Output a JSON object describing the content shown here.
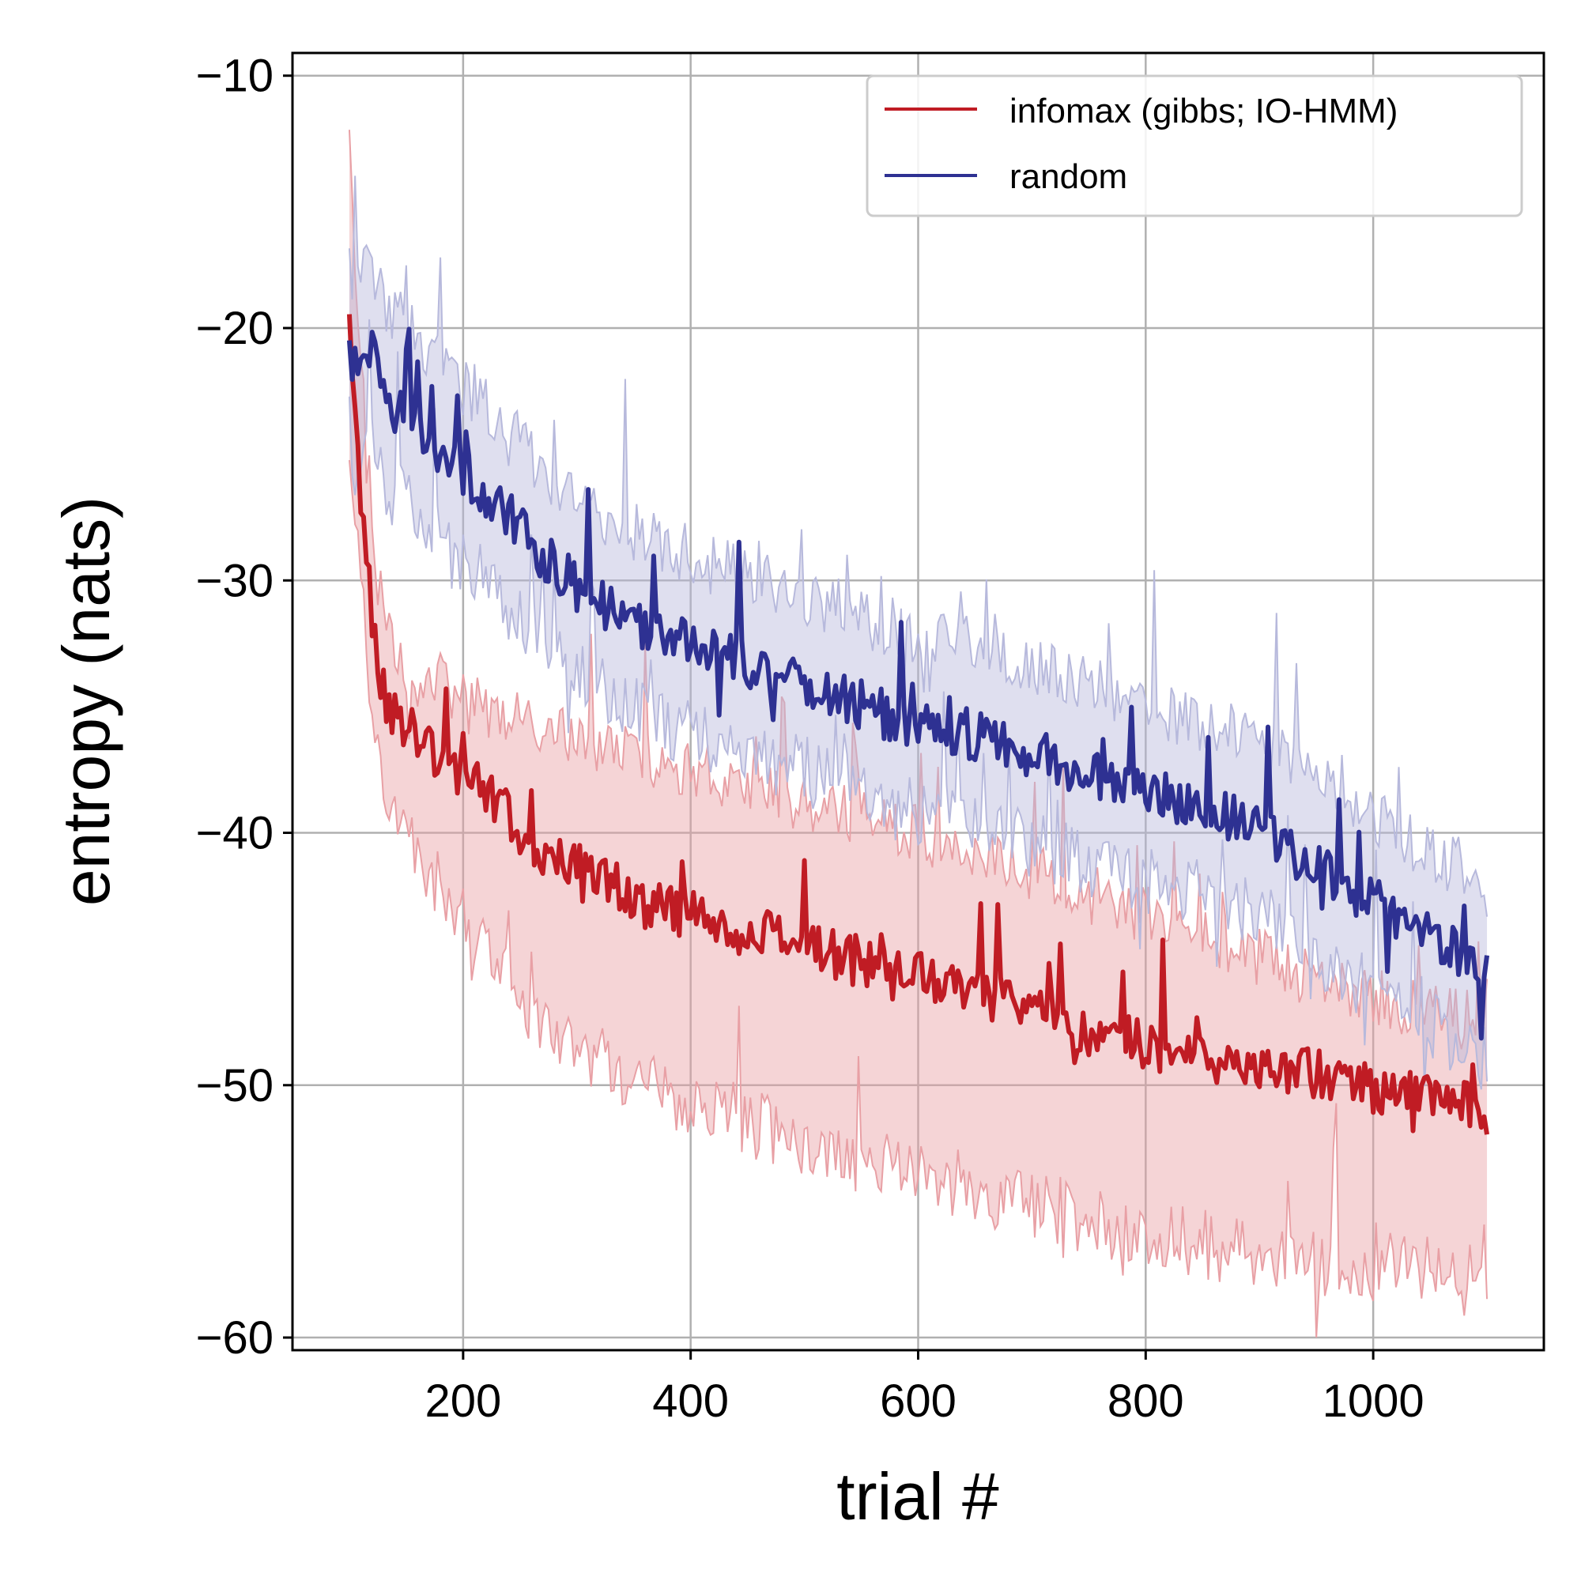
{
  "chart_data": {
    "type": "line",
    "title": "",
    "xlabel": "trial #",
    "ylabel": "entropy (nats)",
    "xlim": [
      50,
      1150
    ],
    "ylim": [
      -60.5,
      -9.1
    ],
    "xticks": [
      200,
      400,
      600,
      800,
      1000
    ],
    "xtick_labels": [
      "200",
      "400",
      "600",
      "800",
      "1000"
    ],
    "yticks": [
      -10,
      -20,
      -30,
      -40,
      -50,
      -60
    ],
    "ytick_labels": [
      "−10",
      "−20",
      "−30",
      "−40",
      "−50",
      "−60"
    ],
    "grid": true,
    "legend_position": "top-right",
    "series": [
      {
        "name": "infomax (gibbs; IO-HMM)",
        "color": "#c01c24",
        "band_color": "#e8a0a5",
        "x": [
          100,
          105,
          110,
          115,
          120,
          125,
          130,
          140,
          150,
          160,
          170,
          180,
          190,
          200,
          210,
          220,
          230,
          240,
          250,
          260,
          270,
          280,
          300,
          320,
          340,
          360,
          380,
          400,
          420,
          440,
          460,
          480,
          500,
          520,
          540,
          560,
          580,
          600,
          620,
          640,
          660,
          680,
          700,
          720,
          740,
          760,
          780,
          800,
          820,
          840,
          860,
          880,
          900,
          920,
          940,
          960,
          980,
          1000,
          1020,
          1040,
          1060,
          1080,
          1090,
          1100
        ],
        "values": [
          -18.7,
          -23.5,
          -26.5,
          -28.5,
          -31.3,
          -33.0,
          -34.5,
          -35.5,
          -35.8,
          -36.3,
          -36.5,
          -37.0,
          -37.5,
          -37.8,
          -38.1,
          -38.3,
          -38.8,
          -39.3,
          -40.0,
          -40.3,
          -40.7,
          -41.0,
          -41.4,
          -41.8,
          -42.2,
          -42.8,
          -43.0,
          -43.2,
          -43.5,
          -43.8,
          -44.0,
          -44.2,
          -44.5,
          -44.8,
          -45.0,
          -45.2,
          -45.4,
          -45.6,
          -45.9,
          -46.2,
          -46.5,
          -46.8,
          -47.1,
          -47.4,
          -47.7,
          -47.9,
          -48.1,
          -48.4,
          -48.6,
          -48.8,
          -49.0,
          -49.1,
          -49.3,
          -49.4,
          -49.5,
          -49.7,
          -49.9,
          -50.1,
          -50.3,
          -50.5,
          -50.5,
          -50.7,
          -51.0,
          -52.5
        ],
        "band_low": [
          -12.0,
          -17.0,
          -21.0,
          -25.0,
          -28.0,
          -30.0,
          -31.0,
          -32.5,
          -33.5,
          -33.8,
          -33.8,
          -34.0,
          -34.5,
          -34.8,
          -35.0,
          -35.0,
          -35.2,
          -35.5,
          -35.5,
          -35.8,
          -36.0,
          -36.0,
          -36.3,
          -36.5,
          -36.8,
          -37.0,
          -37.2,
          -37.5,
          -37.8,
          -38.0,
          -38.2,
          -38.5,
          -38.8,
          -39.0,
          -39.3,
          -39.5,
          -39.8,
          -40.0,
          -40.3,
          -40.7,
          -41.0,
          -41.3,
          -41.6,
          -42.0,
          -42.3,
          -42.6,
          -43.0,
          -43.3,
          -43.6,
          -44.0,
          -44.3,
          -44.6,
          -45.0,
          -45.3,
          -45.6,
          -46.0,
          -46.2,
          -46.5,
          -46.8,
          -47.0,
          -47.3,
          -47.6,
          -48.0,
          -48.5
        ],
        "band_high": [
          -25.0,
          -28.0,
          -30.0,
          -32.0,
          -35.0,
          -37.0,
          -38.5,
          -39.5,
          -40.0,
          -40.8,
          -41.5,
          -42.2,
          -42.8,
          -43.5,
          -44.2,
          -44.8,
          -45.5,
          -46.2,
          -46.8,
          -47.3,
          -47.8,
          -48.2,
          -48.6,
          -49.0,
          -49.4,
          -49.8,
          -50.2,
          -50.6,
          -51.0,
          -51.3,
          -51.6,
          -51.9,
          -52.2,
          -52.5,
          -52.8,
          -53.0,
          -53.2,
          -53.5,
          -53.8,
          -54.0,
          -54.2,
          -54.5,
          -54.7,
          -55.0,
          -55.2,
          -55.4,
          -55.6,
          -55.8,
          -56.0,
          -56.2,
          -56.4,
          -56.5,
          -56.7,
          -56.8,
          -57.0,
          -57.0,
          -57.1,
          -57.2,
          -57.2,
          -57.3,
          -57.4,
          -57.5,
          -57.6,
          -57.8
        ]
      },
      {
        "name": "random",
        "color": "#2e3192",
        "band_color": "#b7b9dc",
        "x": [
          100,
          105,
          110,
          115,
          120,
          125,
          130,
          140,
          150,
          160,
          170,
          180,
          190,
          200,
          210,
          220,
          230,
          240,
          250,
          260,
          270,
          280,
          300,
          320,
          340,
          360,
          380,
          400,
          420,
          440,
          460,
          480,
          500,
          520,
          540,
          560,
          580,
          600,
          620,
          640,
          660,
          680,
          700,
          720,
          740,
          760,
          780,
          800,
          820,
          840,
          860,
          880,
          900,
          920,
          940,
          960,
          980,
          1000,
          1020,
          1040,
          1060,
          1080,
          1090,
          1100
        ],
        "values": [
          -21.0,
          -21.5,
          -22.0,
          -21.5,
          -20.0,
          -21.5,
          -22.5,
          -23.0,
          -23.5,
          -24.0,
          -24.5,
          -25.0,
          -25.5,
          -25.8,
          -26.0,
          -26.5,
          -27.0,
          -27.5,
          -28.0,
          -28.5,
          -29.0,
          -29.5,
          -30.2,
          -30.8,
          -31.3,
          -31.8,
          -32.2,
          -32.5,
          -32.9,
          -33.2,
          -33.5,
          -33.8,
          -34.0,
          -34.4,
          -34.8,
          -35.1,
          -35.4,
          -35.6,
          -35.8,
          -36.0,
          -36.3,
          -36.6,
          -36.9,
          -37.2,
          -37.5,
          -37.8,
          -38.1,
          -38.4,
          -38.6,
          -38.9,
          -39.2,
          -39.5,
          -40.0,
          -40.5,
          -41.1,
          -41.7,
          -42.2,
          -42.8,
          -43.3,
          -43.9,
          -44.4,
          -45.0,
          -45.4,
          -45.8
        ],
        "band_low": [
          -18.0,
          -17.5,
          -17.8,
          -17.8,
          -17.5,
          -18.2,
          -18.8,
          -19.5,
          -20.0,
          -20.5,
          -21.0,
          -21.5,
          -22.0,
          -22.3,
          -22.6,
          -23.0,
          -23.5,
          -24.0,
          -24.5,
          -25.0,
          -25.5,
          -26.0,
          -26.7,
          -27.3,
          -27.8,
          -28.3,
          -28.7,
          -29.0,
          -29.4,
          -29.7,
          -30.0,
          -30.3,
          -30.5,
          -30.9,
          -31.3,
          -31.6,
          -31.9,
          -32.1,
          -32.3,
          -32.5,
          -32.8,
          -33.1,
          -33.4,
          -33.7,
          -34.0,
          -34.3,
          -34.6,
          -34.9,
          -35.2,
          -35.5,
          -35.8,
          -36.1,
          -36.6,
          -37.1,
          -37.7,
          -38.3,
          -38.8,
          -39.4,
          -39.9,
          -40.5,
          -41.0,
          -41.6,
          -42.0,
          -42.5
        ],
        "band_high": [
          -24.0,
          -25.5,
          -26.2,
          -25.2,
          -23.5,
          -24.8,
          -26.2,
          -26.5,
          -27.0,
          -27.5,
          -28.0,
          -28.5,
          -29.0,
          -29.3,
          -29.4,
          -30.0,
          -30.5,
          -31.0,
          -31.5,
          -32.0,
          -32.5,
          -33.0,
          -33.7,
          -34.3,
          -34.8,
          -35.3,
          -35.7,
          -36.0,
          -36.4,
          -36.7,
          -37.0,
          -37.3,
          -37.5,
          -37.9,
          -38.3,
          -38.6,
          -38.9,
          -39.1,
          -39.3,
          -39.5,
          -39.8,
          -40.1,
          -40.4,
          -40.7,
          -41.0,
          -41.3,
          -41.6,
          -41.9,
          -42.0,
          -42.3,
          -42.6,
          -42.9,
          -43.4,
          -43.9,
          -44.5,
          -45.1,
          -45.6,
          -46.2,
          -46.7,
          -47.3,
          -47.8,
          -48.4,
          -48.8,
          -49.1
        ]
      }
    ]
  }
}
